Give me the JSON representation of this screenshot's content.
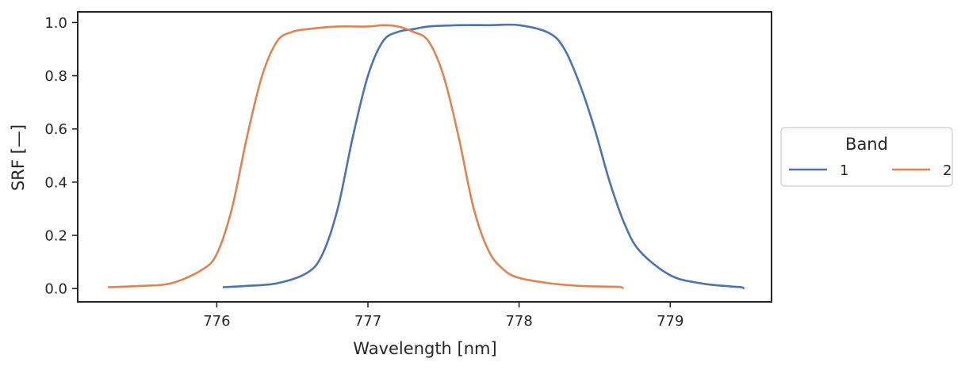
{
  "chart_data": {
    "type": "line",
    "title": "",
    "xlabel": "Wavelength [nm]",
    "ylabel": "SRF [—]",
    "xlim": [
      775.08,
      779.67
    ],
    "ylim": [
      -0.05,
      1.04
    ],
    "xticks": [
      776,
      777,
      778,
      779
    ],
    "yticks": [
      0.0,
      0.2,
      0.4,
      0.6,
      0.8,
      1.0
    ],
    "xtick_labels": [
      "776",
      "777",
      "778",
      "779"
    ],
    "ytick_labels": [
      "0.0",
      "0.2",
      "0.4",
      "0.6",
      "0.8",
      "1.0"
    ],
    "grid": false,
    "legend": {
      "title": "Band",
      "placement": "outside-right",
      "ncol": 2
    },
    "series": [
      {
        "name": "1",
        "color": "#4c72b0",
        "x": [
          776.04,
          776.2,
          776.4,
          776.6,
          776.7,
          776.8,
          776.9,
          777.0,
          777.1,
          777.2,
          777.3,
          777.4,
          777.6,
          777.8,
          778.0,
          778.2,
          778.3,
          778.4,
          778.5,
          778.6,
          778.7,
          778.8,
          779.0,
          779.2,
          779.4,
          779.47,
          779.49
        ],
        "y": [
          0.005,
          0.01,
          0.02,
          0.06,
          0.13,
          0.3,
          0.57,
          0.8,
          0.93,
          0.965,
          0.975,
          0.985,
          0.99,
          0.99,
          0.99,
          0.96,
          0.9,
          0.77,
          0.6,
          0.4,
          0.24,
          0.14,
          0.05,
          0.02,
          0.008,
          0.005,
          0.0
        ]
      },
      {
        "name": "2",
        "color": "#dd8452",
        "x": [
          775.28,
          775.5,
          775.7,
          775.9,
          776.0,
          776.1,
          776.2,
          776.3,
          776.4,
          776.5,
          776.6,
          776.8,
          777.0,
          777.1,
          777.2,
          777.3,
          777.4,
          777.5,
          777.6,
          777.7,
          777.8,
          777.9,
          778.0,
          778.2,
          778.4,
          778.6,
          778.67,
          778.69
        ],
        "y": [
          0.005,
          0.01,
          0.02,
          0.07,
          0.13,
          0.3,
          0.57,
          0.8,
          0.93,
          0.965,
          0.975,
          0.985,
          0.985,
          0.99,
          0.985,
          0.965,
          0.93,
          0.8,
          0.57,
          0.3,
          0.14,
          0.07,
          0.04,
          0.02,
          0.01,
          0.007,
          0.006,
          0.0
        ]
      }
    ]
  }
}
